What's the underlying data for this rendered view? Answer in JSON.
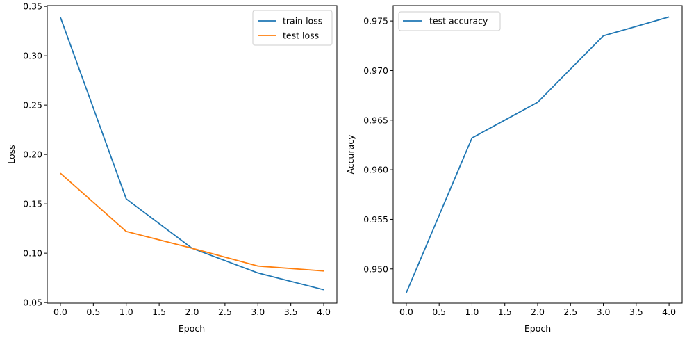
{
  "chart_data": [
    {
      "type": "line",
      "title": "",
      "xlabel": "Epoch",
      "ylabel": "Loss",
      "xlim": [
        -0.2,
        4.2
      ],
      "ylim": [
        0.0494,
        0.3508
      ],
      "xticks": [
        0.0,
        0.5,
        1.0,
        1.5,
        2.0,
        2.5,
        3.0,
        3.5,
        4.0
      ],
      "xtick_labels": [
        "0.0",
        "0.5",
        "1.0",
        "1.5",
        "2.0",
        "2.5",
        "3.0",
        "3.5",
        "4.0"
      ],
      "yticks": [
        0.05,
        0.1,
        0.15,
        0.2,
        0.25,
        0.3,
        0.35
      ],
      "ytick_labels": [
        "0.05",
        "0.10",
        "0.15",
        "0.20",
        "0.25",
        "0.30",
        "0.35"
      ],
      "grid": false,
      "legend_position": "upper right",
      "x": [
        0,
        1,
        2,
        3,
        4
      ],
      "series": [
        {
          "name": "train loss",
          "color": "#1f77b4",
          "values": [
            0.339,
            0.155,
            0.105,
            0.08,
            0.063
          ]
        },
        {
          "name": "test loss",
          "color": "#ff7f0e",
          "values": [
            0.181,
            0.122,
            0.105,
            0.087,
            0.082
          ]
        }
      ]
    },
    {
      "type": "line",
      "title": "",
      "xlabel": "Epoch",
      "ylabel": "Accuracy",
      "xlim": [
        -0.2,
        4.2
      ],
      "ylim": [
        0.94655,
        0.97655
      ],
      "xticks": [
        0.0,
        0.5,
        1.0,
        1.5,
        2.0,
        2.5,
        3.0,
        3.5,
        4.0
      ],
      "xtick_labels": [
        "0.0",
        "0.5",
        "1.0",
        "1.5",
        "2.0",
        "2.5",
        "3.0",
        "3.5",
        "4.0"
      ],
      "yticks": [
        0.95,
        0.955,
        0.96,
        0.965,
        0.97,
        0.975
      ],
      "ytick_labels": [
        "0.950",
        "0.955",
        "0.960",
        "0.965",
        "0.970",
        "0.975"
      ],
      "grid": false,
      "legend_position": "upper left",
      "x": [
        0,
        1,
        2,
        3,
        4
      ],
      "series": [
        {
          "name": "test accuracy",
          "color": "#1f77b4",
          "values": [
            0.9476,
            0.9632,
            0.9668,
            0.9735,
            0.9754
          ]
        }
      ]
    }
  ]
}
